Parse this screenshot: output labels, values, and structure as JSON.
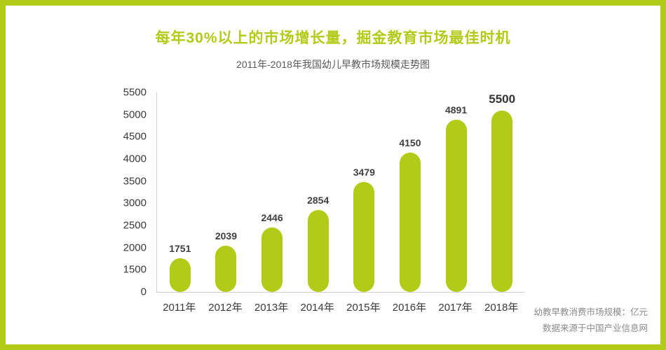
{
  "page": {
    "title": "每年30%以上的市场增长量，掘金教育市场最佳时机",
    "subtitle": "2011年-2018年我国幼儿早教市场规模走势图",
    "footnote_line1": "幼教早教消费市场规模：亿元",
    "footnote_line2": "数据来源于中国产业信息网"
  },
  "colors": {
    "accent": "#b2cb17",
    "bar": "#b2cb17",
    "axis_line": "#cfcfcf",
    "text_dark": "#3a3a3a",
    "text_gray": "#8a8a8a"
  },
  "chart_data": {
    "type": "bar",
    "title": "2011年-2018年我国幼儿早教市场规模走势图",
    "categories": [
      "2011年",
      "2012年",
      "2013年",
      "2014年",
      "2015年",
      "2016年",
      "2017年",
      "2018年"
    ],
    "values": [
      1751,
      2039,
      2446,
      2854,
      3479,
      4150,
      4891,
      5500
    ],
    "ylabel": "亿元",
    "y_ticks": [
      5500,
      5000,
      4500,
      4000,
      3500,
      3000,
      2500,
      2000,
      1500,
      0
    ],
    "ylim": [
      0,
      5500
    ],
    "grid": false,
    "legend": "none",
    "bar_style": "rounded-pill",
    "note": "y axis is compressed between 0 and 1500 (single tick step)"
  }
}
